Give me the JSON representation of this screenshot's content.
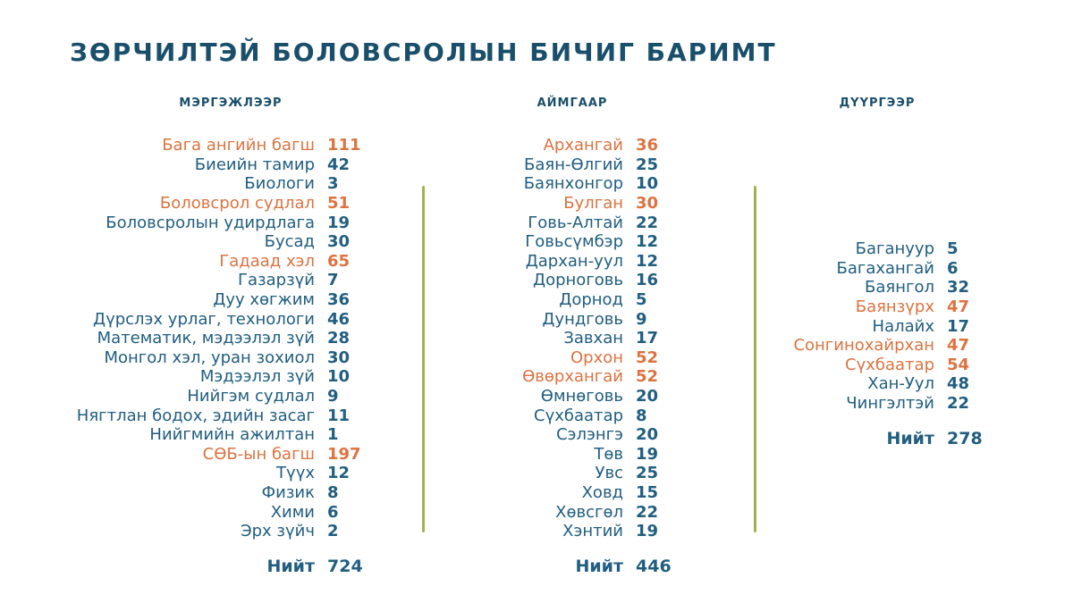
{
  "title": "ЗӨРЧИЛТЭЙ БОЛОВСРОЛЫН БИЧИГ БАРИМТ",
  "colors": {
    "heading": "#1a4f6b",
    "text": "#215e80",
    "highlight": "#dc7340",
    "divider": "#a3b24f",
    "background": "#ffffff"
  },
  "chart_data": [
    {
      "type": "table",
      "title": "МЭРГЭЖЛЭЭР",
      "total_label": "Нийт",
      "total": 724,
      "rows": [
        {
          "label": "Бага ангийн багш",
          "value": 111,
          "highlight": true
        },
        {
          "label": "Биеийн тамир",
          "value": 42,
          "highlight": false
        },
        {
          "label": "Биологи",
          "value": 3,
          "highlight": false
        },
        {
          "label": "Боловсрол судлал",
          "value": 51,
          "highlight": true
        },
        {
          "label": "Боловсролын удирдлага",
          "value": 19,
          "highlight": false
        },
        {
          "label": "Бусад",
          "value": 30,
          "highlight": false
        },
        {
          "label": "Гадаад хэл",
          "value": 65,
          "highlight": true
        },
        {
          "label": "Газарзүй",
          "value": 7,
          "highlight": false
        },
        {
          "label": "Дуу хөгжим",
          "value": 36,
          "highlight": false
        },
        {
          "label": "Дүрслэх урлаг, технологи",
          "value": 46,
          "highlight": false
        },
        {
          "label": "Математик, мэдээлэл зүй",
          "value": 28,
          "highlight": false
        },
        {
          "label": "Монгол хэл, уран зохиол",
          "value": 30,
          "highlight": false
        },
        {
          "label": "Мэдээлэл зүй",
          "value": 10,
          "highlight": false
        },
        {
          "label": "Нийгэм судлал",
          "value": 9,
          "highlight": false
        },
        {
          "label": "Нягтлан бодох, эдийн засаг",
          "value": 11,
          "highlight": false
        },
        {
          "label": "Нийгмийн ажилтан",
          "value": 1,
          "highlight": false
        },
        {
          "label": "СӨБ-ын багш",
          "value": 197,
          "highlight": true
        },
        {
          "label": "Түүх",
          "value": 12,
          "highlight": false
        },
        {
          "label": "Физик",
          "value": 8,
          "highlight": false
        },
        {
          "label": "Хими",
          "value": 6,
          "highlight": false
        },
        {
          "label": "Эрх зүйч",
          "value": 2,
          "highlight": false
        }
      ]
    },
    {
      "type": "table",
      "title": "АЙМГААР",
      "total_label": "Нийт",
      "total": 446,
      "rows": [
        {
          "label": "Архангай",
          "value": 36,
          "highlight": true
        },
        {
          "label": "Баян-Өлгий",
          "value": 25,
          "highlight": false
        },
        {
          "label": "Баянхонгор",
          "value": 10,
          "highlight": false
        },
        {
          "label": "Булган",
          "value": 30,
          "highlight": true
        },
        {
          "label": "Говь-Алтай",
          "value": 22,
          "highlight": false
        },
        {
          "label": "Говьсүмбэр",
          "value": 12,
          "highlight": false
        },
        {
          "label": "Дархан-уул",
          "value": 12,
          "highlight": false
        },
        {
          "label": "Дорноговь",
          "value": 16,
          "highlight": false
        },
        {
          "label": "Дорнод",
          "value": 5,
          "highlight": false
        },
        {
          "label": "Дундговь",
          "value": 9,
          "highlight": false
        },
        {
          "label": "Завхан",
          "value": 17,
          "highlight": false
        },
        {
          "label": "Орхон",
          "value": 52,
          "highlight": true
        },
        {
          "label": "Өвөрхангай",
          "value": 52,
          "highlight": true
        },
        {
          "label": "Өмнөговь",
          "value": 20,
          "highlight": false
        },
        {
          "label": "Сүхбаатар",
          "value": 8,
          "highlight": false
        },
        {
          "label": "Сэлэнгэ",
          "value": 20,
          "highlight": false
        },
        {
          "label": "Төв",
          "value": 19,
          "highlight": false
        },
        {
          "label": "Увс",
          "value": 25,
          "highlight": false
        },
        {
          "label": "Ховд",
          "value": 15,
          "highlight": false
        },
        {
          "label": "Хөвсгөл",
          "value": 22,
          "highlight": false
        },
        {
          "label": "Хэнтий",
          "value": 19,
          "highlight": false
        }
      ]
    },
    {
      "type": "table",
      "title": "ДҮҮРГЭЭР",
      "total_label": "Нийт",
      "total": 278,
      "rows": [
        {
          "label": "Багануур",
          "value": 5,
          "highlight": false
        },
        {
          "label": "Багахангай",
          "value": 6,
          "highlight": false
        },
        {
          "label": "Баянгол",
          "value": 32,
          "highlight": false
        },
        {
          "label": "Баянзүрх",
          "value": 47,
          "highlight": true
        },
        {
          "label": "Налайх",
          "value": 17,
          "highlight": false
        },
        {
          "label": "Сонгинохайрхан",
          "value": 47,
          "highlight": true
        },
        {
          "label": "Сүхбаатар",
          "value": 54,
          "highlight": true
        },
        {
          "label": "Хан-Уул",
          "value": 48,
          "highlight": false
        },
        {
          "label": "Чингэлтэй",
          "value": 22,
          "highlight": false
        }
      ]
    }
  ]
}
